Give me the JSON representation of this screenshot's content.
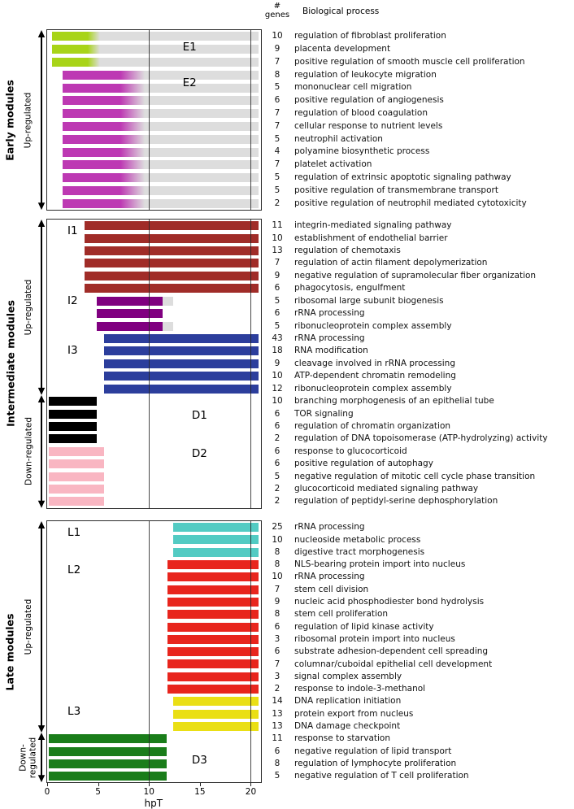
{
  "header": {
    "genes_line1": "#",
    "genes_line2": "genes",
    "process": "Biological process"
  },
  "chart_data": {
    "type": "bar",
    "orientation": "horizontal-timeline",
    "x_axis": {
      "label": "hpT",
      "min": 0,
      "max": 21,
      "ticks": [
        0,
        5,
        10,
        15,
        20
      ],
      "gridlines": [
        10,
        20
      ]
    },
    "colors": {
      "faded_tail": "rgba(150,150,150,0.32)",
      "gridline": "rgba(40,40,40,0.85)",
      "border": "#2b2b2b"
    },
    "panels": [
      {
        "title": "Early modules",
        "regulation": [
          {
            "direction": "up",
            "label_lines": [
              "Up-regulated"
            ],
            "row_start": 0,
            "row_end": 13
          }
        ],
        "modules": [
          {
            "id": "E1",
            "color": "#a8d418",
            "bar": {
              "start": 0.5,
              "solid_until": 4.0,
              "fade_until": 5.2,
              "end": 20.8
            },
            "label_pos": {
              "x": 13.3,
              "row": 1.3
            },
            "rows": [
              {
                "genes": 10,
                "process": "regulation of fibroblast proliferation"
              },
              {
                "genes": 9,
                "process": "placenta development"
              },
              {
                "genes": 7,
                "process": "positive regulation of smooth muscle cell proliferation"
              }
            ]
          },
          {
            "id": "E2",
            "color": "#bd39b3",
            "bar": {
              "start": 1.5,
              "solid_until": 7.2,
              "fade_until": 9.6,
              "end": 20.8
            },
            "label_pos": {
              "x": 13.3,
              "row": 4.1
            },
            "rows": [
              {
                "genes": 8,
                "process": "regulation of leukocyte migration"
              },
              {
                "genes": 5,
                "process": "mononuclear cell migration"
              },
              {
                "genes": 6,
                "process": "positive regulation of angiogenesis"
              },
              {
                "genes": 7,
                "process": "regulation of blood coagulation"
              },
              {
                "genes": 7,
                "process": "cellular response to nutrient levels"
              },
              {
                "genes": 5,
                "process": "neutrophil activation"
              },
              {
                "genes": 4,
                "process": "polyamine biosynthetic process"
              },
              {
                "genes": 7,
                "process": "platelet activation"
              },
              {
                "genes": 5,
                "process": "regulation of extrinsic apoptotic signaling pathway"
              },
              {
                "genes": 5,
                "process": "positive regulation of transmembrane transport"
              },
              {
                "genes": 2,
                "process": "positive regulation of neutrophil mediated cytotoxicity"
              }
            ]
          }
        ]
      },
      {
        "title": "Intermediate modules",
        "regulation": [
          {
            "direction": "up",
            "label_lines": [
              "Up-regulated"
            ],
            "row_start": 0,
            "row_end": 13
          },
          {
            "direction": "down",
            "label_lines": [
              "Down-regulated"
            ],
            "row_start": 14,
            "row_end": 22
          }
        ],
        "modules": [
          {
            "id": "I1",
            "color": "#a02c28",
            "bar": {
              "start": 3.7,
              "end": 20.8
            },
            "label_pos": {
              "x": 2.0,
              "row": 0.9
            },
            "rows": [
              {
                "genes": 11,
                "process": "integrin-mediated signaling pathway"
              },
              {
                "genes": 10,
                "process": "establishment of endothelial barrier"
              },
              {
                "genes": 13,
                "process": "regulation of chemotaxis"
              },
              {
                "genes": 7,
                "process": "regulation of actin filament depolymerization"
              },
              {
                "genes": 9,
                "process": "negative regulation of supramolecular fiber organization"
              },
              {
                "genes": 6,
                "process": "phagocytosis, engulfment"
              }
            ]
          },
          {
            "id": "I2",
            "color": "#800080",
            "bar": {
              "start": 4.9,
              "end": 11.3
            },
            "label_pos": {
              "x": 2.0,
              "row": 6.5
            },
            "rows": [
              {
                "genes": 5,
                "process": "ribosomal large subunit biogenesis",
                "tail_end": 12.4
              },
              {
                "genes": 6,
                "process": "rRNA processing"
              },
              {
                "genes": 5,
                "process": "ribonucleoprotein complex assembly",
                "tail_end": 12.4
              }
            ]
          },
          {
            "id": "I3",
            "color": "#2c3e9c",
            "bar": {
              "start": 5.6,
              "end": 20.8
            },
            "label_pos": {
              "x": 2.0,
              "row": 10.45
            },
            "rows": [
              {
                "genes": 43,
                "process": "rRNA processing"
              },
              {
                "genes": 18,
                "process": "RNA modification"
              },
              {
                "genes": 9,
                "process": "cleavage involved in rRNA processing"
              },
              {
                "genes": 10,
                "process": "ATP-dependent chromatin remodeling"
              },
              {
                "genes": 12,
                "process": "ribonucleoprotein complex assembly"
              }
            ]
          },
          {
            "id": "D1",
            "color": "#000000",
            "bar": {
              "start": 0.15,
              "end": 4.9
            },
            "label_pos": {
              "x": 14.2,
              "row": 15.6
            },
            "rows": [
              {
                "genes": 10,
                "process": "branching morphogenesis of an epithelial tube"
              },
              {
                "genes": 6,
                "process": "TOR signaling"
              },
              {
                "genes": 6,
                "process": "regulation of chromatin organization"
              },
              {
                "genes": 2,
                "process": "regulation of DNA topoisomerase (ATP-hydrolyzing) activity"
              }
            ]
          },
          {
            "id": "D2",
            "color": "#f9b6c2",
            "bar": {
              "start": 0.15,
              "end": 5.6
            },
            "label_pos": {
              "x": 14.2,
              "row": 18.7
            },
            "rows": [
              {
                "genes": 6,
                "process": "response to glucocorticoid"
              },
              {
                "genes": 6,
                "process": "positive regulation of autophagy"
              },
              {
                "genes": 5,
                "process": "negative regulation of mitotic cell cycle phase transition"
              },
              {
                "genes": 2,
                "process": "glucocorticoid mediated signaling pathway"
              },
              {
                "genes": 2,
                "process": "regulation of peptidyl-serine dephosphorylation"
              }
            ]
          }
        ]
      },
      {
        "title": "Late modules",
        "regulation": [
          {
            "direction": "up",
            "label_lines": [
              "Up-regulated"
            ],
            "row_start": 0,
            "row_end": 16
          },
          {
            "direction": "down",
            "label_lines": [
              "Down-",
              "regulated"
            ],
            "row_start": 17,
            "row_end": 20
          }
        ],
        "modules": [
          {
            "id": "L1",
            "color": "#53cbc3",
            "bar": {
              "start": 12.4,
              "end": 20.8
            },
            "label_pos": {
              "x": 2.0,
              "row": 0.9
            },
            "rows": [
              {
                "genes": 25,
                "process": "rRNA processing"
              },
              {
                "genes": 10,
                "process": "nucleoside metabolic process"
              },
              {
                "genes": 8,
                "process": "digestive tract morphogenesis"
              }
            ]
          },
          {
            "id": "L2",
            "color": "#e8251d",
            "bar": {
              "start": 11.8,
              "end": 20.8
            },
            "label_pos": {
              "x": 2.0,
              "row": 3.9
            },
            "rows": [
              {
                "genes": 8,
                "process": "NLS-bearing protein import into nucleus"
              },
              {
                "genes": 10,
                "process": "rRNA processing"
              },
              {
                "genes": 7,
                "process": "stem cell division"
              },
              {
                "genes": 9,
                "process": "nucleic acid phosphodiester bond hydrolysis"
              },
              {
                "genes": 8,
                "process": "stem cell proliferation"
              },
              {
                "genes": 6,
                "process": "regulation of lipid kinase activity"
              },
              {
                "genes": 3,
                "process": "ribosomal protein import into nucleus"
              },
              {
                "genes": 6,
                "process": "substrate adhesion-dependent cell spreading"
              },
              {
                "genes": 7,
                "process": "columnar/cuboidal epithelial cell development"
              },
              {
                "genes": 3,
                "process": "signal complex assembly"
              },
              {
                "genes": 2,
                "process": "response to indole-3-methanol"
              }
            ]
          },
          {
            "id": "L3",
            "color": "#eadf15",
            "bar": {
              "start": 12.4,
              "end": 20.8
            },
            "label_pos": {
              "x": 2.0,
              "row": 15.3
            },
            "rows": [
              {
                "genes": 14,
                "process": "DNA replication initiation"
              },
              {
                "genes": 13,
                "process": "protein export from nucleus"
              },
              {
                "genes": 13,
                "process": "DNA damage checkpoint"
              }
            ]
          },
          {
            "id": "D3",
            "color": "#1a7d1a",
            "bar": {
              "start": 0.15,
              "end": 11.7
            },
            "label_pos": {
              "x": 14.2,
              "row": 19.2
            },
            "rows": [
              {
                "genes": 11,
                "process": "response to starvation"
              },
              {
                "genes": 6,
                "process": "negative regulation of lipid transport"
              },
              {
                "genes": 8,
                "process": "regulation of lymphocyte proliferation"
              },
              {
                "genes": 5,
                "process": "negative regulation of T cell proliferation"
              }
            ]
          }
        ]
      }
    ]
  }
}
